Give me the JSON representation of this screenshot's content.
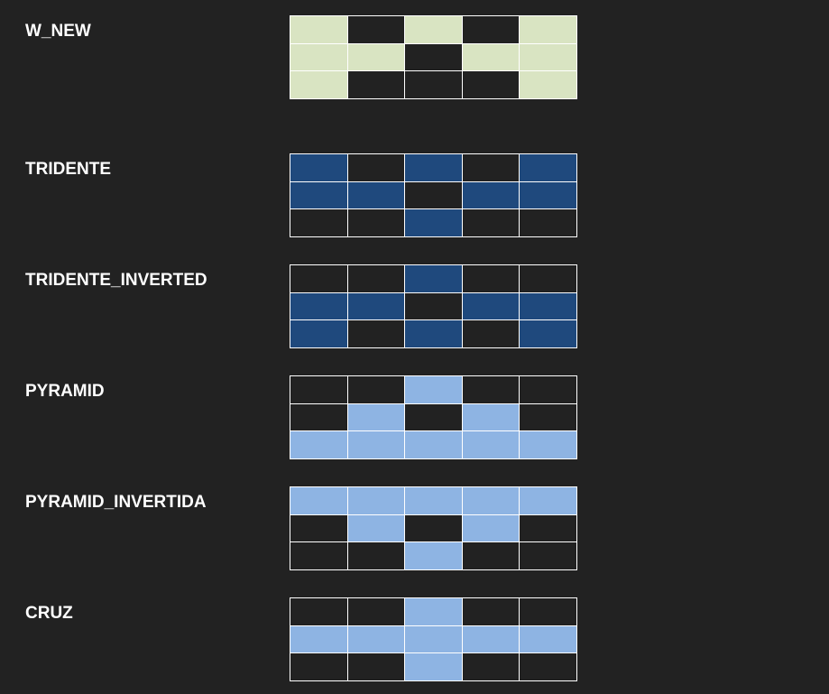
{
  "palette": {
    "background": "#222222",
    "grid_line": "#ffffff",
    "label_text": "#ffffff",
    "empty_cell": "#222222"
  },
  "patterns": [
    {
      "name": "W_NEW",
      "fill_color": "#d9e4c2",
      "cells": [
        [
          1,
          0,
          1,
          0,
          1
        ],
        [
          1,
          1,
          0,
          1,
          1
        ],
        [
          1,
          0,
          0,
          0,
          1
        ]
      ]
    },
    {
      "name": "TRIDENTE",
      "fill_color": "#1f497d",
      "cells": [
        [
          1,
          0,
          1,
          0,
          1
        ],
        [
          1,
          1,
          0,
          1,
          1
        ],
        [
          0,
          0,
          1,
          0,
          0
        ]
      ]
    },
    {
      "name": "TRIDENTE_INVERTED",
      "fill_color": "#1f497d",
      "cells": [
        [
          0,
          0,
          1,
          0,
          0
        ],
        [
          1,
          1,
          0,
          1,
          1
        ],
        [
          1,
          0,
          1,
          0,
          1
        ]
      ]
    },
    {
      "name": "PYRAMID",
      "fill_color": "#8eb4e3",
      "cells": [
        [
          0,
          0,
          1,
          0,
          0
        ],
        [
          0,
          1,
          0,
          1,
          0
        ],
        [
          1,
          1,
          1,
          1,
          1
        ]
      ]
    },
    {
      "name": "PYRAMID_INVERTIDA",
      "fill_color": "#8eb4e3",
      "cells": [
        [
          1,
          1,
          1,
          1,
          1
        ],
        [
          0,
          1,
          0,
          1,
          0
        ],
        [
          0,
          0,
          1,
          0,
          0
        ]
      ]
    },
    {
      "name": "CRUZ",
      "fill_color": "#8eb4e3",
      "cells": [
        [
          0,
          0,
          1,
          0,
          0
        ],
        [
          1,
          1,
          1,
          1,
          1
        ],
        [
          0,
          0,
          1,
          0,
          0
        ]
      ]
    }
  ]
}
